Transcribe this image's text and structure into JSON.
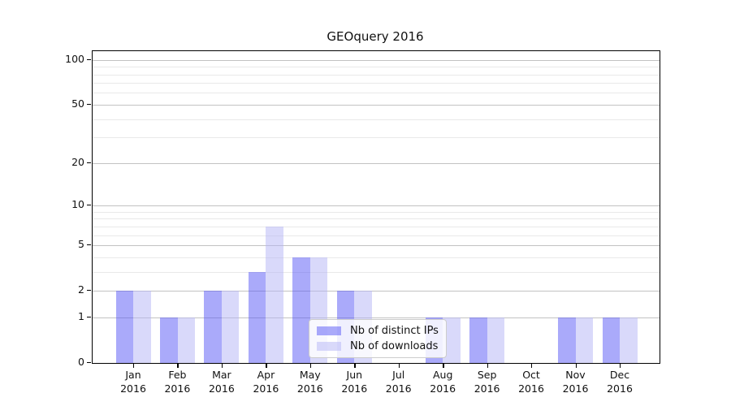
{
  "title": "GEOquery 2016",
  "colors": {
    "bar_ips": "rgba(85,85,245,0.5)",
    "bar_downloads": "rgba(180,180,245,0.5)",
    "grid_major": "#c2c2c2",
    "grid_minor": "#e9e9e9",
    "axis": "#000000"
  },
  "legend": {
    "items": [
      {
        "label": "Nb of distinct IPs",
        "color": "rgba(85,85,245,0.5)"
      },
      {
        "label": "Nb of downloads",
        "color": "rgba(180,180,245,0.5)"
      }
    ]
  },
  "chart_data": {
    "type": "bar",
    "title": "GEOquery 2016",
    "categories": [
      "Jan 2016",
      "Feb 2016",
      "Mar 2016",
      "Apr 2016",
      "May 2016",
      "Jun 2016",
      "Jul 2016",
      "Aug 2016",
      "Sep 2016",
      "Oct 2016",
      "Nov 2016",
      "Dec 2016"
    ],
    "series": [
      {
        "name": "Nb of distinct IPs",
        "values": [
          2,
          1,
          2,
          3,
          4,
          2,
          0,
          1,
          1,
          0,
          1,
          1
        ]
      },
      {
        "name": "Nb of downloads",
        "values": [
          2,
          1,
          2,
          7,
          4,
          2,
          0,
          1,
          1,
          0,
          1,
          1
        ]
      }
    ],
    "xlabel": "",
    "ylabel": "",
    "yscale": "log1p",
    "ylim": [
      0,
      113
    ],
    "y_major_ticks": [
      0,
      1,
      2,
      5,
      10,
      20,
      50,
      100
    ],
    "y_minor_ticks": [
      3,
      4,
      6,
      7,
      8,
      9,
      30,
      40,
      60,
      70,
      80,
      90
    ],
    "grid": true,
    "legend_position": "lower center (inside plot)"
  }
}
